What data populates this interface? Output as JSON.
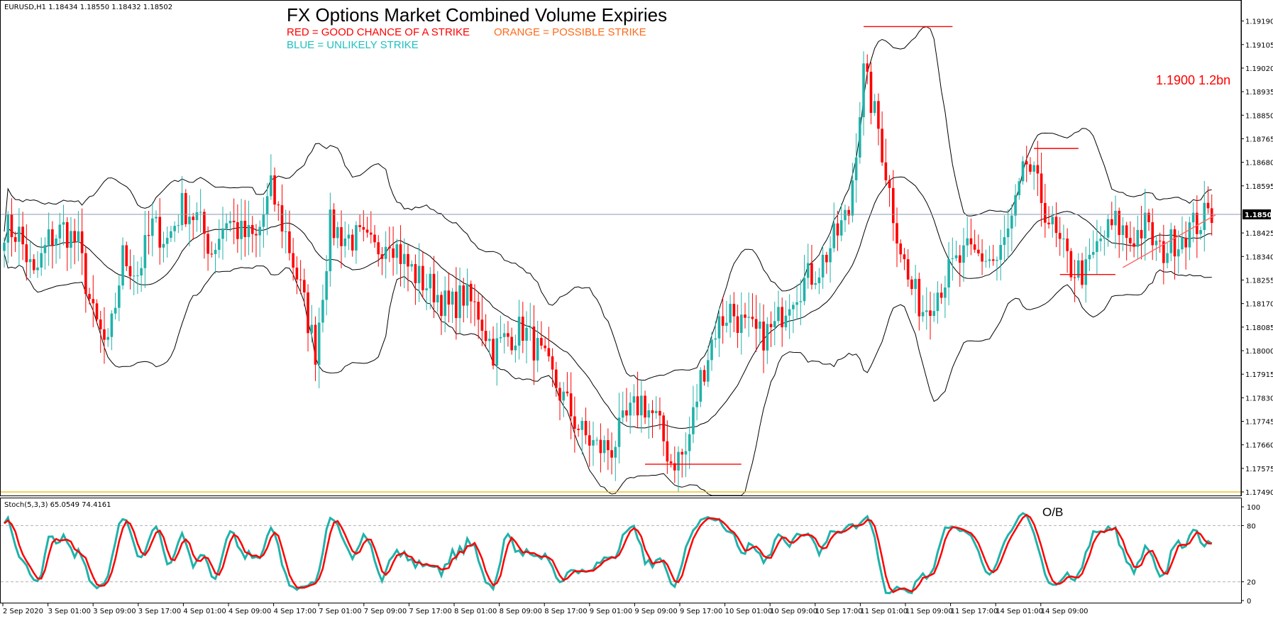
{
  "header": {
    "symbol_info": "EURUSD,H1  1.18434 1.18550 1.18432 1.18502",
    "title": "FX Options Market Combined Volume Expiries",
    "legend_red": "RED = GOOD CHANCE OF A STRIKE",
    "legend_orange": "ORANGE = POSSIBLE STRIKE",
    "legend_blue": "BLUE = UNLIKELY STRIKE",
    "strike_note": "1.1900 1.2bn"
  },
  "stoch_panel": {
    "label": "Stoch(5,3,3) 65.0549 74.4161",
    "ob_label": "O/B"
  },
  "colors": {
    "bull": "#20b2aa",
    "bear": "#ff0000",
    "band": "#000000",
    "legend_red": "#ff0000",
    "legend_orange": "#ff6a1a",
    "legend_blue": "#20c0c0",
    "price_line": "#8a9bb0",
    "low_line": "#e6b800",
    "stoch_main": "#20b2aa",
    "stoch_signal": "#ff0000"
  },
  "chart_data": {
    "type": "candlestick",
    "price_axis": {
      "min": 1.1749,
      "max": 1.1923,
      "ticks": [
        "1.19190",
        "1.19105",
        "1.19020",
        "1.18935",
        "1.18850",
        "1.18765",
        "1.18680",
        "1.18595",
        "1.18425",
        "1.18340",
        "1.18255",
        "1.18170",
        "1.18085",
        "1.18000",
        "1.17915",
        "1.17830",
        "1.17745",
        "1.17660",
        "1.17575",
        "1.17490"
      ],
      "current_price": "1.18502"
    },
    "time_labels": [
      "2 Sep 2020",
      "3 Sep 01:00",
      "3 Sep 09:00",
      "3 Sep 17:00",
      "4 Sep 01:00",
      "4 Sep 09:00",
      "4 Sep 17:00",
      "7 Sep 01:00",
      "7 Sep 09:00",
      "7 Sep 17:00",
      "8 Sep 01:00",
      "8 Sep 09:00",
      "8 Sep 17:00",
      "9 Sep 01:00",
      "9 Sep 09:00",
      "9 Sep 17:00",
      "10 Sep 01:00",
      "10 Sep 09:00",
      "10 Sep 17:00",
      "11 Sep 01:00",
      "11 Sep 09:00",
      "11 Sep 17:00",
      "14 Sep 01:00",
      "14 Sep 09:00"
    ],
    "stoch_axis": {
      "min": 0,
      "max": 100,
      "ticks": [
        "100",
        "80",
        "20",
        "0"
      ]
    },
    "anchors": [
      [
        0,
        1.1845
      ],
      [
        4,
        1.1842
      ],
      [
        8,
        1.1826
      ],
      [
        12,
        1.184
      ],
      [
        16,
        1.1844
      ],
      [
        20,
        1.1838
      ],
      [
        24,
        1.1812
      ],
      [
        28,
        1.18
      ],
      [
        32,
        1.1834
      ],
      [
        36,
        1.1828
      ],
      [
        40,
        1.1845
      ],
      [
        44,
        1.184
      ],
      [
        48,
        1.1852
      ],
      [
        52,
        1.1848
      ],
      [
        56,
        1.1836
      ],
      [
        60,
        1.1848
      ],
      [
        64,
        1.1842
      ],
      [
        68,
        1.184
      ],
      [
        72,
        1.1858
      ],
      [
        76,
        1.1842
      ],
      [
        80,
        1.1822
      ],
      [
        84,
        1.18
      ],
      [
        88,
        1.1845
      ],
      [
        92,
        1.1841
      ],
      [
        96,
        1.184
      ],
      [
        100,
        1.1836
      ],
      [
        104,
        1.1842
      ],
      [
        108,
        1.1832
      ],
      [
        112,
        1.1826
      ],
      [
        116,
        1.1822
      ],
      [
        120,
        1.1815
      ],
      [
        124,
        1.182
      ],
      [
        128,
        1.1814
      ],
      [
        132,
        1.18
      ],
      [
        136,
        1.1805
      ],
      [
        140,
        1.1808
      ],
      [
        144,
        1.18
      ],
      [
        148,
        1.179
      ],
      [
        152,
        1.178
      ],
      [
        156,
        1.177
      ],
      [
        160,
        1.1765
      ],
      [
        164,
        1.1765
      ],
      [
        168,
        1.1775
      ],
      [
        172,
        1.1782
      ],
      [
        176,
        1.1775
      ],
      [
        180,
        1.176
      ],
      [
        184,
        1.1763
      ],
      [
        188,
        1.179
      ],
      [
        192,
        1.1808
      ],
      [
        196,
        1.1815
      ],
      [
        200,
        1.1808
      ],
      [
        204,
        1.1805
      ],
      [
        208,
        1.1808
      ],
      [
        212,
        1.182
      ],
      [
        216,
        1.1825
      ],
      [
        220,
        1.183
      ],
      [
        224,
        1.184
      ],
      [
        228,
        1.185
      ],
      [
        232,
        1.19
      ],
      [
        236,
        1.188
      ],
      [
        240,
        1.185
      ],
      [
        244,
        1.1825
      ],
      [
        248,
        1.1815
      ],
      [
        252,
        1.1822
      ],
      [
        256,
        1.183
      ],
      [
        260,
        1.1835
      ],
      [
        264,
        1.1834
      ],
      [
        268,
        1.1832
      ],
      [
        272,
        1.1846
      ],
      [
        276,
        1.1868
      ],
      [
        280,
        1.1855
      ],
      [
        284,
        1.184
      ],
      [
        288,
        1.183
      ],
      [
        292,
        1.1828
      ],
      [
        296,
        1.184
      ],
      [
        300,
        1.1846
      ],
      [
        304,
        1.184
      ],
      [
        308,
        1.1845
      ],
      [
        312,
        1.1835
      ],
      [
        316,
        1.184
      ],
      [
        320,
        1.1844
      ],
      [
        324,
        1.1848
      ],
      [
        326,
        1.185
      ]
    ],
    "trend_lines": [
      {
        "color": "#ff0000",
        "x1": 232,
        "x2": 256,
        "y": 1.1917
      },
      {
        "color": "#ff0000",
        "x1": 173,
        "x2": 199,
        "y": 1.1759
      },
      {
        "color": "#ff0000",
        "x1": 278,
        "x2": 290,
        "y": 1.1873
      },
      {
        "color": "#ff0000",
        "x1": 285,
        "x2": 300,
        "y": 1.18275
      },
      {
        "color": "#ff6666",
        "x1": 302,
        "x2": 327,
        "y": 1.183,
        "y2": 1.1849
      }
    ]
  }
}
